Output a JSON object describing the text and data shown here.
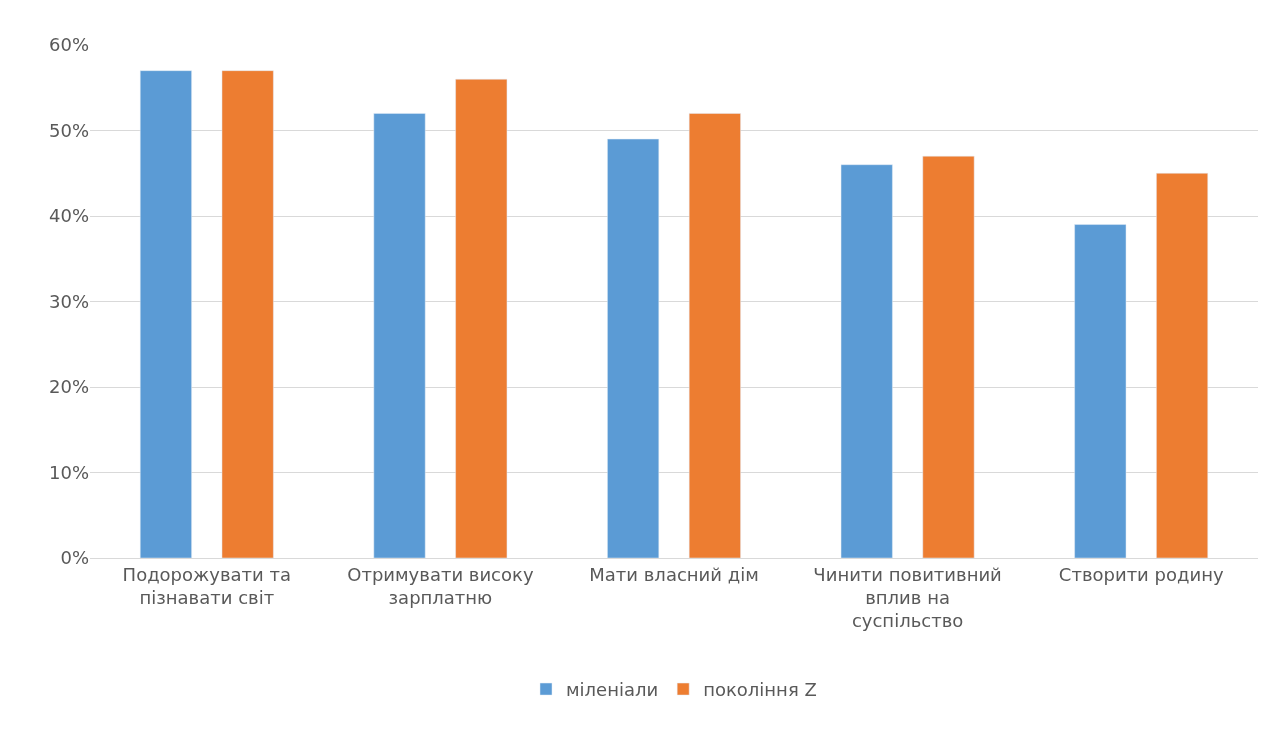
{
  "chart_data": {
    "type": "bar",
    "categories": [
      "Подорожувати та пізнавати світ",
      "Отримувати високу зарплатню",
      "Мати власний дім",
      "Чинити повитивний вплив на суспільство",
      "Створити родину"
    ],
    "series": [
      {
        "name": "міленіали",
        "color": "#5b9bd5",
        "values": [
          57,
          52,
          49,
          46,
          39
        ]
      },
      {
        "name": "покоління Z",
        "color": "#ed7d31",
        "values": [
          57,
          56,
          52,
          47,
          45
        ]
      }
    ],
    "ylim": [
      0,
      60
    ],
    "yticks": [
      {
        "value": 0,
        "label": "0%"
      },
      {
        "value": 10,
        "label": "10%"
      },
      {
        "value": 20,
        "label": "20%"
      },
      {
        "value": 30,
        "label": "30%"
      },
      {
        "value": 40,
        "label": "40%"
      },
      {
        "value": 50,
        "label": "50%"
      },
      {
        "value": 60,
        "label": "60%"
      }
    ],
    "grid": "y",
    "legend": "bottom"
  }
}
